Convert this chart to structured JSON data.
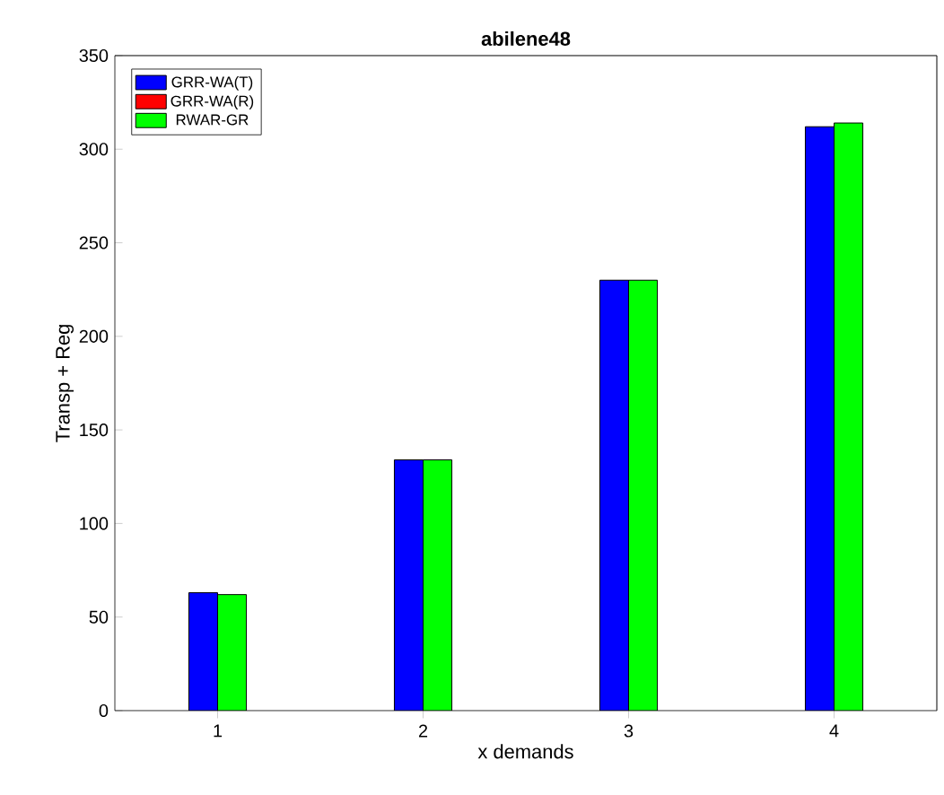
{
  "chart_data": {
    "type": "bar",
    "title": "abilene48",
    "xlabel": "x demands",
    "ylabel": "Transp + Reg",
    "categories": [
      "1",
      "2",
      "3",
      "4"
    ],
    "series": [
      {
        "name": "GRR-WA(T)",
        "color": "#0000ff",
        "values": [
          63,
          134,
          230,
          312
        ]
      },
      {
        "name": "GRR-WA(R)",
        "color": "#ff0000",
        "values": [
          null,
          null,
          null,
          null
        ]
      },
      {
        "name": "RWAR-GR",
        "color": "#00ff00",
        "values": [
          62,
          134,
          230,
          314
        ]
      }
    ],
    "ylim": [
      0,
      350
    ],
    "yticks": [
      0,
      50,
      100,
      150,
      200,
      250,
      300,
      350
    ],
    "legend": "top left",
    "grid": false
  }
}
